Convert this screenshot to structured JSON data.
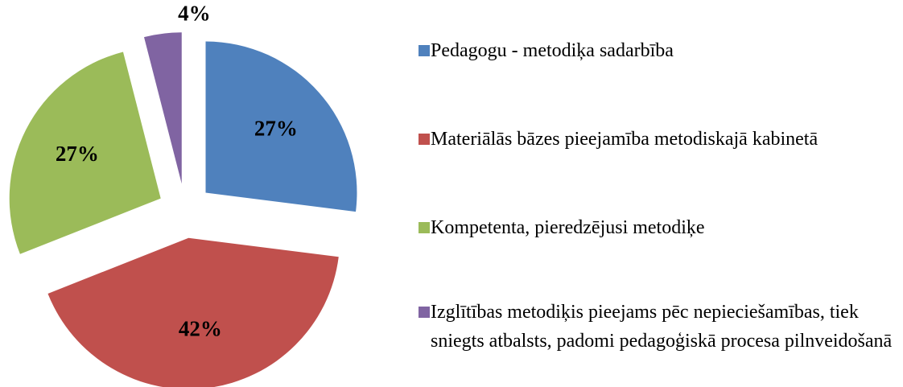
{
  "chart_data": {
    "type": "pie",
    "categories": [
      "Pedagogu - metodiķa sadarbība",
      "Materiālās bāzes pieejamība metodiskajā kabinetā",
      "Kompetenta, pieredzējusi metodiķe",
      "Izglītības metodiķis pieejams pēc nepieciešamības, tiek sniegts atbalsts, padomi pedagoģiskā procesa pilnveidošanā"
    ],
    "values": [
      27,
      42,
      27,
      4
    ],
    "value_labels": [
      "27%",
      "42%",
      "27%",
      "4%"
    ],
    "colors": [
      "#4f81bd",
      "#c0504d",
      "#9bbb59",
      "#8064a2"
    ],
    "exploded": true,
    "legend": "right"
  }
}
